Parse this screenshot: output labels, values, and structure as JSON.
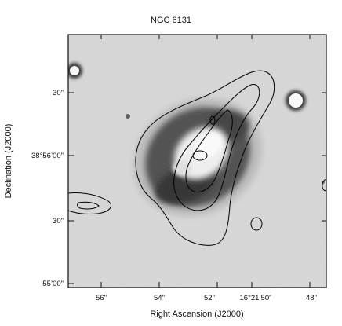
{
  "figure": {
    "title": "NGC 6131",
    "xlabel": "Right Ascension (J2000)",
    "ylabel": "Declination (J2000)",
    "x_ticks": [
      "56\"",
      "54\"",
      "52\"",
      "16°21’50\"",
      "48\""
    ],
    "y_ticks": [
      "30\"",
      "38°56’00\"",
      "30\"",
      "55’00\""
    ],
    "image_type": "greyscale optical image with overlaid radio contours",
    "colors": {
      "frame": "#111111",
      "background": "#d9d9d9",
      "contour": "#000000"
    }
  }
}
